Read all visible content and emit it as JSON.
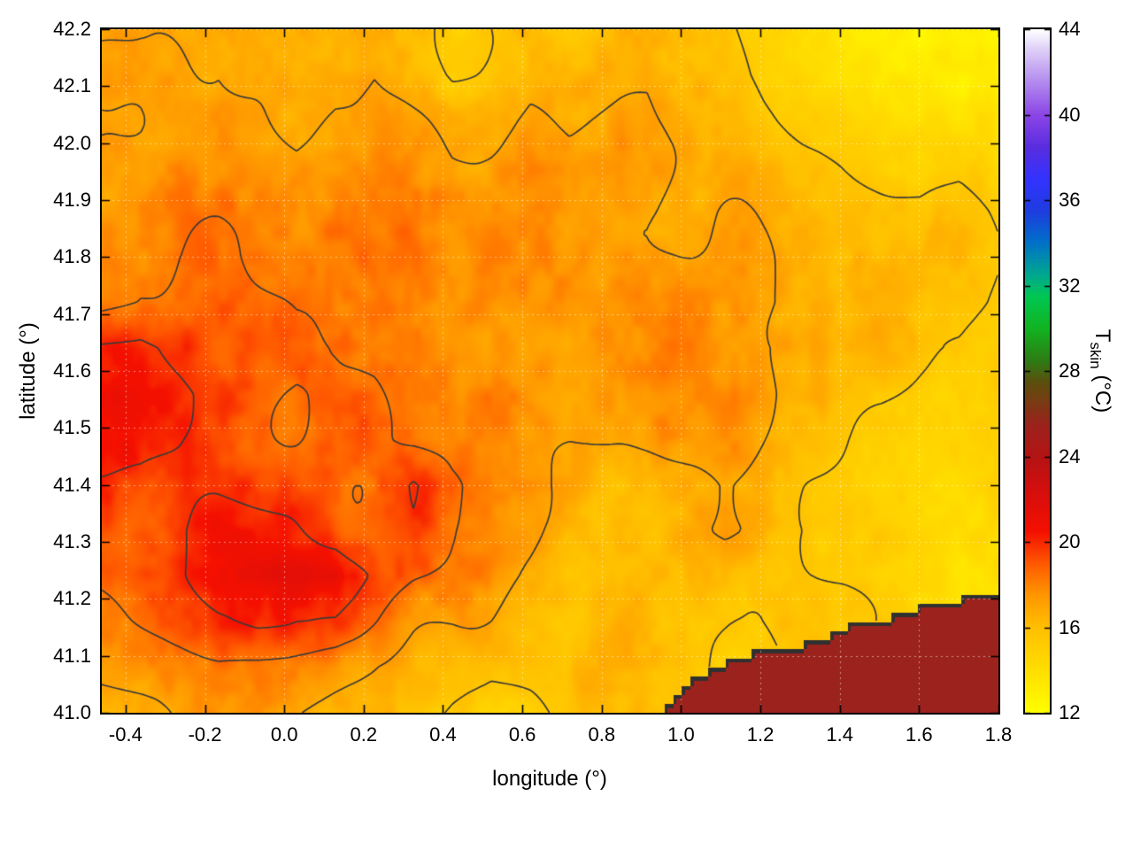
{
  "chart_data": {
    "type": "heatmap",
    "title": "",
    "xlabel": "longitude (°)",
    "ylabel": "latitude (°)",
    "colorbar_label": "T_skin (°C)",
    "cblabel_main": "T",
    "cblabel_sub": "skin",
    "cblabel_unit": " (°C)",
    "x_range": [
      -0.46,
      1.8
    ],
    "y_range": [
      41.0,
      42.2
    ],
    "color_range": [
      12,
      44
    ],
    "xticks": [
      -0.4,
      -0.2,
      0.0,
      0.2,
      0.4,
      0.6,
      0.8,
      1.0,
      1.2,
      1.4,
      1.6,
      1.8
    ],
    "xtick_labels": [
      "-0.4",
      "-0.2",
      "0.0",
      "0.2",
      "0.4",
      "0.6",
      "0.8",
      "1.0",
      "1.2",
      "1.4",
      "1.6",
      "1.8"
    ],
    "yticks": [
      41.0,
      41.1,
      41.2,
      41.3,
      41.4,
      41.5,
      41.6,
      41.7,
      41.8,
      41.9,
      42.0,
      42.1,
      42.2
    ],
    "ytick_labels": [
      "41.0",
      "41.1",
      "41.2",
      "41.3",
      "41.4",
      "41.5",
      "41.6",
      "41.7",
      "41.8",
      "41.9",
      "42.0",
      "42.1",
      "42.2"
    ],
    "colorbar_ticks": [
      12,
      16,
      20,
      24,
      28,
      32,
      36,
      40,
      44
    ],
    "colorbar_tick_labels": [
      "12",
      "16",
      "20",
      "24",
      "28",
      "32",
      "36",
      "40",
      "44"
    ],
    "legend_position": "colorbar-right",
    "grid_lines": true,
    "palette_stops": [
      [
        12,
        "#ffff00"
      ],
      [
        14,
        "#ffdf00"
      ],
      [
        16,
        "#ffc000"
      ],
      [
        17.5,
        "#ff9800"
      ],
      [
        19,
        "#ff5a00"
      ],
      [
        20.5,
        "#f51000"
      ],
      [
        22.5,
        "#d40e0e"
      ],
      [
        24,
        "#b41414"
      ],
      [
        25.5,
        "#9c231d"
      ],
      [
        26.5,
        "#7c3a14"
      ],
      [
        27.5,
        "#5c500e"
      ],
      [
        28.5,
        "#2e7c14"
      ],
      [
        30,
        "#12b421"
      ],
      [
        31.5,
        "#00c853"
      ],
      [
        32.5,
        "#00a98f"
      ],
      [
        34,
        "#0072c8"
      ],
      [
        35.5,
        "#1f3de0"
      ],
      [
        37,
        "#3333ff"
      ],
      [
        38.5,
        "#5a2de0"
      ],
      [
        40,
        "#8c46e6"
      ],
      [
        41.5,
        "#b289ee"
      ],
      [
        43,
        "#ddcdf8"
      ],
      [
        44,
        "#ffffff"
      ]
    ],
    "contour_levels": [
      15.5,
      17,
      18.5,
      20
    ],
    "contour_color": "#3a3a3a",
    "sea_temperature": 25.5,
    "coastline": [
      [
        0.93,
        41.0
      ],
      [
        0.97,
        41.02
      ],
      [
        1.0,
        41.05
      ],
      [
        1.05,
        41.07
      ],
      [
        1.12,
        41.09
      ],
      [
        1.2,
        41.11
      ],
      [
        1.3,
        41.12
      ],
      [
        1.38,
        41.14
      ],
      [
        1.46,
        41.16
      ],
      [
        1.55,
        41.17
      ],
      [
        1.62,
        41.19
      ],
      [
        1.7,
        41.2
      ],
      [
        1.8,
        41.215
      ]
    ],
    "grid": {
      "lon_min": -0.46,
      "lon_max": 1.8,
      "lat_min": 41.0,
      "lat_max": 42.2,
      "values_north_to_south": [
        [
          16.5,
          16.8,
          17.0,
          17.2,
          16.8,
          16.2,
          16.8,
          17.0,
          16.0,
          15.2,
          15.8,
          16.2,
          15.5,
          16.0,
          16.5,
          16.2,
          15.5,
          14.8,
          14.2,
          13.8,
          13.5,
          13.2,
          13.0,
          12.8
        ],
        [
          16.8,
          17.0,
          17.3,
          17.5,
          17.0,
          16.5,
          17.0,
          17.2,
          16.2,
          15.5,
          16.0,
          16.5,
          16.0,
          16.3,
          16.8,
          16.5,
          15.8,
          15.0,
          14.5,
          14.0,
          13.8,
          13.5,
          13.2,
          13.0
        ],
        [
          17.0,
          17.3,
          17.6,
          17.8,
          17.4,
          17.0,
          17.4,
          17.5,
          16.8,
          16.2,
          16.5,
          17.0,
          16.5,
          16.8,
          17.0,
          16.8,
          16.2,
          15.5,
          15.0,
          14.8,
          14.5,
          14.2,
          14.0,
          13.8
        ],
        [
          17.3,
          17.6,
          18.0,
          18.0,
          17.8,
          17.5,
          17.8,
          17.8,
          17.2,
          16.8,
          17.0,
          17.3,
          17.0,
          17.2,
          17.3,
          17.0,
          16.5,
          16.0,
          15.8,
          15.5,
          15.2,
          15.0,
          15.2,
          14.5
        ],
        [
          17.5,
          18.0,
          18.3,
          18.2,
          18.0,
          17.8,
          18.0,
          18.0,
          17.5,
          17.2,
          17.4,
          17.6,
          17.3,
          17.5,
          17.5,
          17.2,
          16.8,
          16.4,
          16.2,
          16.0,
          15.8,
          15.5,
          15.8,
          15.0
        ],
        [
          18.0,
          18.4,
          18.6,
          18.4,
          18.2,
          18.0,
          18.2,
          18.2,
          17.8,
          17.5,
          17.7,
          17.8,
          17.5,
          17.7,
          17.6,
          17.4,
          17.0,
          16.8,
          16.5,
          16.3,
          16.0,
          15.8,
          16.0,
          15.3
        ],
        [
          18.5,
          19.0,
          19.0,
          18.8,
          18.5,
          18.2,
          18.4,
          18.4,
          18.0,
          17.8,
          17.9,
          18.0,
          17.7,
          17.8,
          17.8,
          17.5,
          17.2,
          17.0,
          16.8,
          16.5,
          16.2,
          16.0,
          16.2,
          15.5
        ],
        [
          20.5,
          20.8,
          20.0,
          19.2,
          18.8,
          18.5,
          18.6,
          18.5,
          18.2,
          18.0,
          18.0,
          18.0,
          17.8,
          17.9,
          17.8,
          17.6,
          17.3,
          17.0,
          16.8,
          16.5,
          16.3,
          16.0,
          15.8,
          15.5
        ],
        [
          21.0,
          21.0,
          20.3,
          19.5,
          19.0,
          18.6,
          18.6,
          18.5,
          18.2,
          18.0,
          18.0,
          18.0,
          17.8,
          17.8,
          17.7,
          17.5,
          17.2,
          16.8,
          16.5,
          16.2,
          16.0,
          15.5,
          15.2,
          15.0
        ],
        [
          20.5,
          20.5,
          20.0,
          19.5,
          19.0,
          18.8,
          18.7,
          18.5,
          18.2,
          18.0,
          17.9,
          17.8,
          17.6,
          17.6,
          17.5,
          17.3,
          17.0,
          16.5,
          16.0,
          15.8,
          15.5,
          15.2,
          15.0,
          14.8
        ],
        [
          19.5,
          19.8,
          19.8,
          19.5,
          19.2,
          19.0,
          18.8,
          18.6,
          19.8,
          18.4,
          17.8,
          17.5,
          16.8,
          16.2,
          16.0,
          16.5,
          16.8,
          16.2,
          15.8,
          15.5,
          15.2,
          15.0,
          14.8,
          14.5
        ],
        [
          19.0,
          19.5,
          20.0,
          20.2,
          20.0,
          19.8,
          19.5,
          19.0,
          19.2,
          18.2,
          17.8,
          17.2,
          16.2,
          15.5,
          15.8,
          16.8,
          17.0,
          16.5,
          16.0,
          15.5,
          15.2,
          14.8,
          14.5,
          14.2
        ],
        [
          18.5,
          19.0,
          19.8,
          20.5,
          20.8,
          20.5,
          21.5,
          20.0,
          18.8,
          18.2,
          17.5,
          16.8,
          16.0,
          15.8,
          16.2,
          16.8,
          16.5,
          16.0,
          15.5,
          15.2,
          14.8,
          14.5,
          14.2,
          14.0
        ],
        [
          18.0,
          18.5,
          19.0,
          19.5,
          19.8,
          19.5,
          19.8,
          18.8,
          17.8,
          17.2,
          16.8,
          16.2,
          15.8,
          16.0,
          16.5,
          16.2,
          16.0,
          15.8,
          15.5,
          15.2,
          14.8,
          14.5,
          14.2,
          14.0
        ],
        [
          17.5,
          17.8,
          18.0,
          18.2,
          18.0,
          17.8,
          17.5,
          17.2,
          16.8,
          16.2,
          15.8,
          16.0,
          16.2,
          16.5,
          16.2,
          16.0,
          15.8,
          15.5,
          15.2,
          15.0,
          14.8,
          14.5,
          14.2,
          14.0
        ],
        [
          17.0,
          17.2,
          17.5,
          17.8,
          17.5,
          17.2,
          16.8,
          16.5,
          16.0,
          15.5,
          15.2,
          15.5,
          16.0,
          16.2,
          16.0,
          15.8,
          15.5,
          15.2,
          15.0,
          14.8,
          14.5,
          14.2,
          14.0,
          13.8
        ]
      ]
    }
  }
}
